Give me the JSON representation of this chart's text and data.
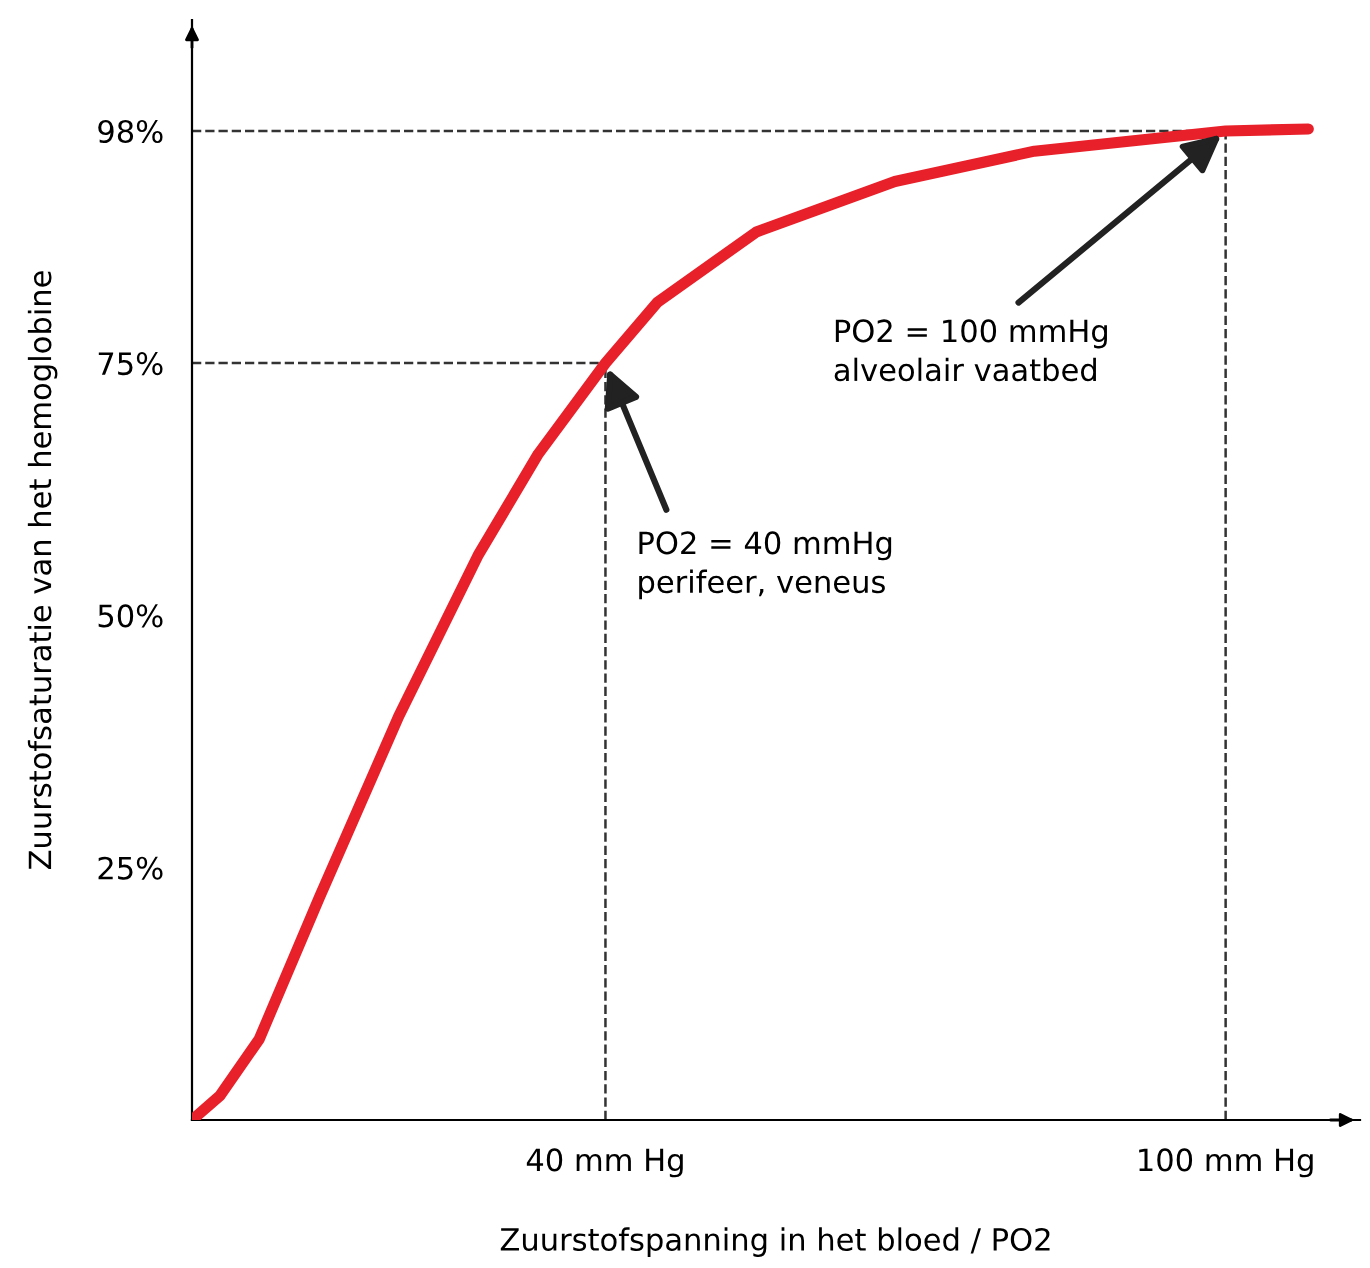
{
  "chart_data": {
    "type": "line",
    "xlabel": "Zuurstofspanning in het bloed / PO2",
    "ylabel": "Zuurstofsaturatie van het hemoglobine",
    "x": [
      0,
      2.7,
      6.5,
      12.3,
      20,
      27.7,
      33.5,
      40,
      45,
      54.6,
      68,
      81.5,
      100,
      108
    ],
    "series": [
      {
        "color": "#e8202a",
        "values": [
          0,
          2.4,
          8,
          22,
          40,
          56,
          66,
          75,
          81,
          88,
          93,
          96,
          98,
          98.2
        ]
      }
    ],
    "xlim": [
      0,
      113
    ],
    "ylim": [
      0,
      109
    ],
    "xticks": [
      {
        "value": 40,
        "label": "40 mm Hg"
      },
      {
        "value": 100,
        "label": "100 mm Hg"
      }
    ],
    "yticks": [
      {
        "value": 25,
        "label": "25%"
      },
      {
        "value": 50,
        "label": "50%"
      },
      {
        "value": 75,
        "label": "75%"
      },
      {
        "value": 98,
        "label": "98%"
      }
    ],
    "ref_lines": [
      {
        "axis": "x",
        "value": 40,
        "line_style": "dashed",
        "color": "#333333"
      },
      {
        "axis": "y",
        "value": 75,
        "line_style": "dashed",
        "color": "#333333"
      },
      {
        "axis": "x",
        "value": 100,
        "line_style": "dashed",
        "color": "#333333"
      },
      {
        "axis": "y",
        "value": 98,
        "line_style": "dashed",
        "color": "#333333"
      }
    ],
    "annotations": [
      {
        "text": "PO2 = 40 mmHg\nperifeer, veneus",
        "x": 40,
        "y": 75
      },
      {
        "text": "PO2 = 100 mmHg\nalveolair vaatbed",
        "x": 100,
        "y": 98
      }
    ],
    "grid": false,
    "legend": false,
    "marker": "none",
    "line_style": "solid"
  }
}
